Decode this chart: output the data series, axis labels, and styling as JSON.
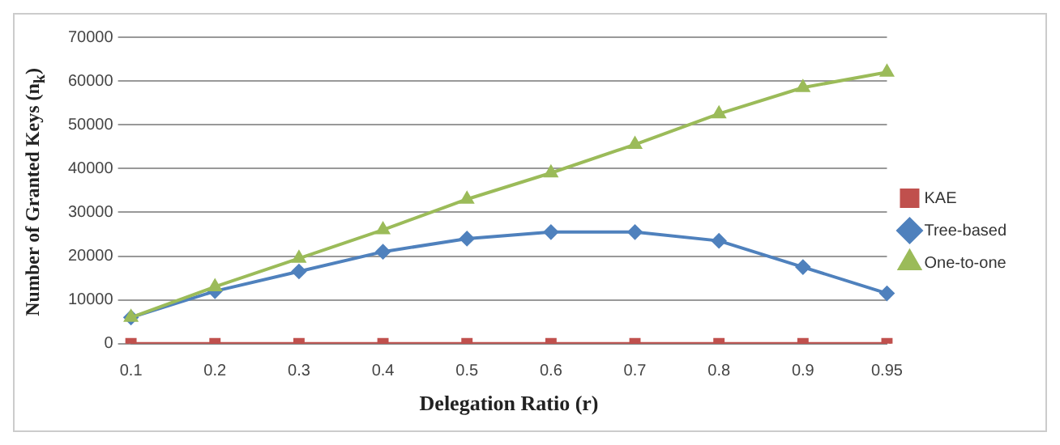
{
  "chart_data": {
    "type": "line",
    "xlabel": "Delegation Ratio (r)",
    "ylabel": "Number of Granted Keys (n$_{k}$)",
    "categories": [
      "0.1",
      "0.2",
      "0.3",
      "0.4",
      "0.5",
      "0.6",
      "0.7",
      "0.8",
      "0.9",
      "0.95"
    ],
    "series": [
      {
        "name": "KAE",
        "color": "#c0504d",
        "marker": "square",
        "values": [
          0,
          0,
          0,
          0,
          0,
          0,
          0,
          0,
          0,
          0
        ]
      },
      {
        "name": "Tree-based",
        "color": "#4f81bd",
        "marker": "diamond",
        "values": [
          6000,
          12000,
          16500,
          21000,
          24000,
          25500,
          25500,
          23500,
          17500,
          11500
        ]
      },
      {
        "name": "One-to-one",
        "color": "#9bbb59",
        "marker": "triangle",
        "values": [
          6000,
          13000,
          19500,
          26000,
          33000,
          39000,
          45500,
          52500,
          58500,
          62000
        ]
      }
    ],
    "ylim": [
      0,
      70000
    ],
    "yticks": [
      0,
      10000,
      20000,
      30000,
      40000,
      50000,
      60000,
      70000
    ],
    "grid": "y",
    "legend": "right"
  }
}
